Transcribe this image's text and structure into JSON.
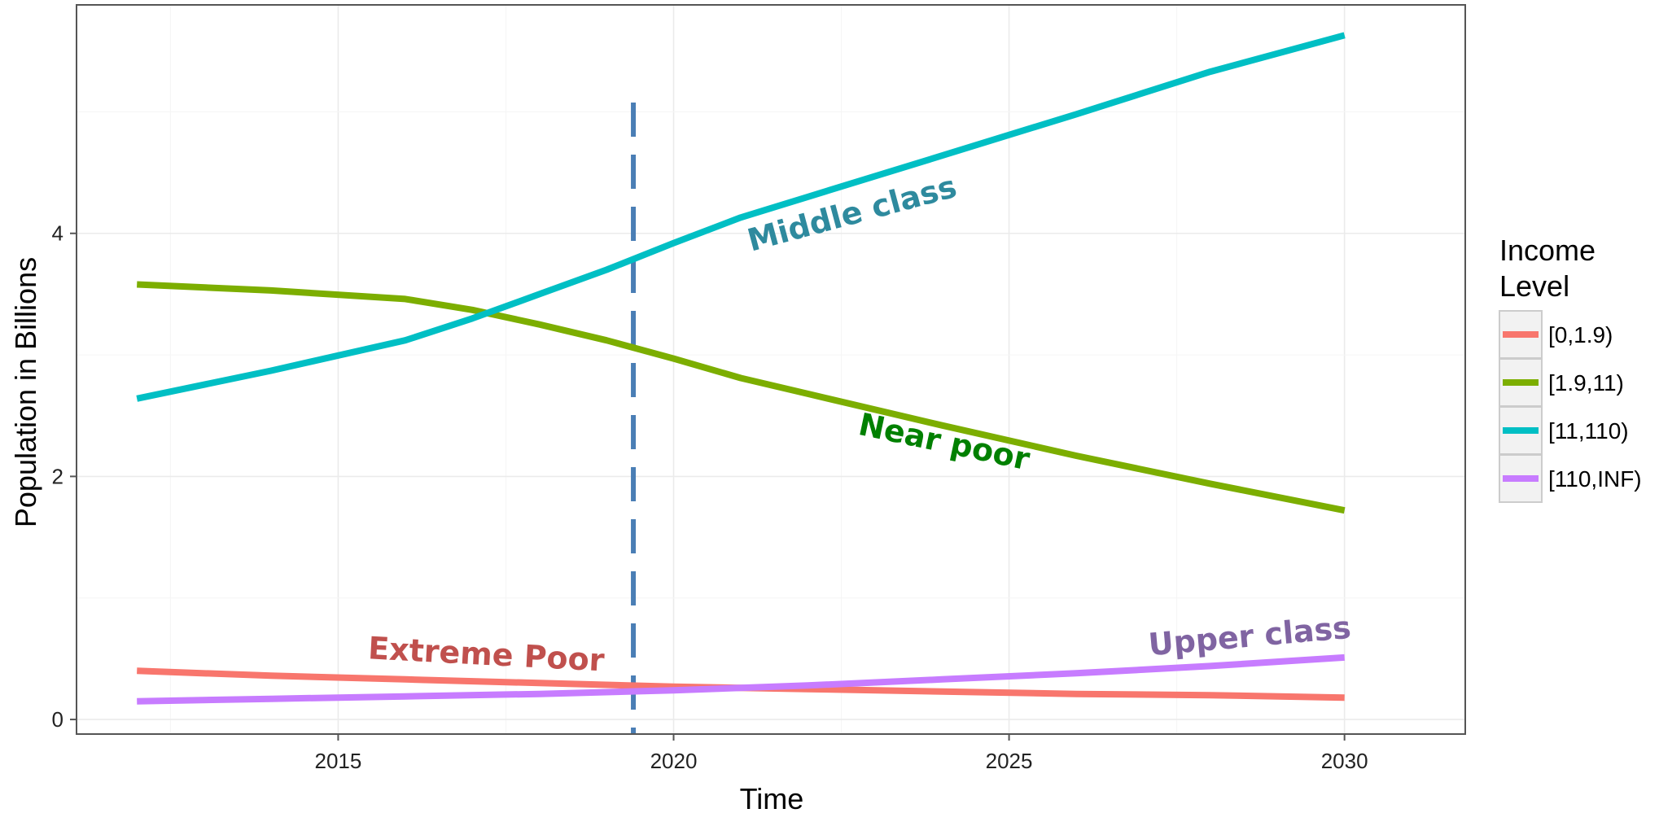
{
  "chart_data": {
    "type": "line",
    "title": "",
    "xlabel": "Time",
    "ylabel": "Population in Billions",
    "xlim": [
      2011.1,
      2031.8
    ],
    "ylim": [
      -0.12,
      5.88
    ],
    "x_ticks": [
      2015,
      2020,
      2025,
      2030
    ],
    "y_ticks": [
      0,
      2,
      4
    ],
    "grid": true,
    "legend": {
      "title_lines": [
        "Income",
        "Level"
      ],
      "placement": "right"
    },
    "vline": {
      "x": 2019.4,
      "color": "#4a7eb5",
      "style": "dashed"
    },
    "series": [
      {
        "name": "[0,1.9)",
        "color": "#f8766d",
        "x": [
          2012,
          2014,
          2016,
          2018,
          2020,
          2022,
          2024,
          2026,
          2028,
          2030
        ],
        "values": [
          0.4,
          0.36,
          0.33,
          0.3,
          0.27,
          0.25,
          0.23,
          0.21,
          0.2,
          0.18
        ]
      },
      {
        "name": "[1.9,11)",
        "color": "#7cae00",
        "x": [
          2012,
          2014,
          2016,
          2017,
          2018,
          2019,
          2020,
          2021,
          2022,
          2024,
          2026,
          2028,
          2030
        ],
        "values": [
          3.58,
          3.53,
          3.46,
          3.37,
          3.25,
          3.12,
          2.97,
          2.81,
          2.68,
          2.42,
          2.17,
          1.94,
          1.72
        ]
      },
      {
        "name": "[11,110)",
        "color": "#00bfc4",
        "x": [
          2012,
          2014,
          2016,
          2017,
          2018,
          2019,
          2020,
          2021,
          2022,
          2024,
          2026,
          2028,
          2030
        ],
        "values": [
          2.64,
          2.87,
          3.12,
          3.3,
          3.5,
          3.7,
          3.92,
          4.13,
          4.3,
          4.64,
          4.98,
          5.33,
          5.63
        ]
      },
      {
        "name": "[110,INF)",
        "color": "#c77cff",
        "x": [
          2012,
          2014,
          2016,
          2018,
          2020,
          2022,
          2024,
          2026,
          2028,
          2030
        ],
        "values": [
          0.15,
          0.17,
          0.19,
          0.21,
          0.24,
          0.28,
          0.33,
          0.38,
          0.44,
          0.51
        ]
      }
    ],
    "annotations": [
      {
        "text": "Middle class",
        "color": "#2e8a9e",
        "x": 2022.7,
        "y": 4.08,
        "angle": -15
      },
      {
        "text": "Near poor",
        "color": "#008000",
        "x": 2024.0,
        "y": 2.2,
        "angle": 12
      },
      {
        "text": "Extreme Poor",
        "color": "#c0504d",
        "x": 2017.2,
        "y": 0.45,
        "angle": 3
      },
      {
        "text": "Upper class",
        "color": "#8064a2",
        "x": 2028.6,
        "y": 0.6,
        "angle": -5
      }
    ]
  }
}
